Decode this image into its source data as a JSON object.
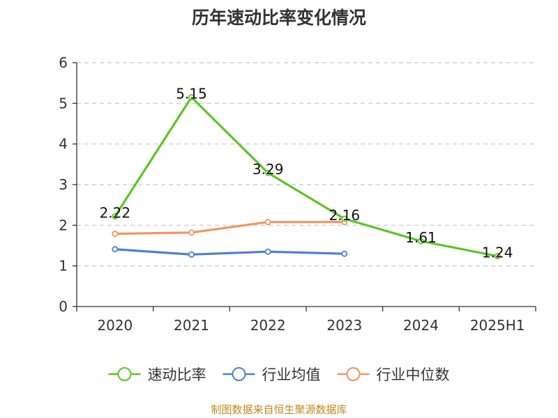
{
  "chart_data": {
    "type": "line",
    "title": "历年速动比率变化情况",
    "categories": [
      "2020",
      "2021",
      "2022",
      "2023",
      "2024",
      "2025H1"
    ],
    "ylim": [
      0,
      6
    ],
    "yticks": [
      0,
      1,
      2,
      3,
      4,
      5,
      6
    ],
    "grid": true,
    "legend_position": "bottom",
    "series": [
      {
        "name": "速动比率",
        "color": "#5cc526",
        "values": [
          2.22,
          5.15,
          3.29,
          2.16,
          1.61,
          1.24
        ],
        "labels": [
          "2.22",
          "5.15",
          "3.29",
          "2.16",
          "1.61",
          "1.24"
        ],
        "show_labels": true
      },
      {
        "name": "行业均值",
        "color": "#4a7fd6",
        "values": [
          1.41,
          1.28,
          1.35,
          1.3,
          null,
          null
        ],
        "show_labels": false
      },
      {
        "name": "行业中位数",
        "color": "#f5935d",
        "values": [
          1.79,
          1.82,
          2.08,
          2.08,
          null,
          null
        ],
        "show_labels": false
      }
    ],
    "source": "制图数据来自恒生聚源数据库"
  }
}
